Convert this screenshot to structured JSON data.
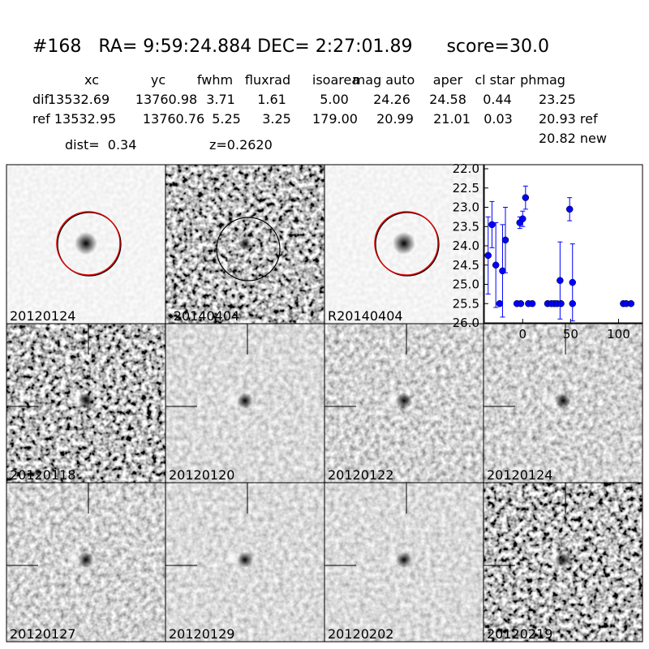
{
  "header": {
    "title": "#168   RA= 9:59:24.884 DEC= 2:27:01.89      score=30.0"
  },
  "table": {
    "columns": [
      "xc",
      "yc",
      "fwhm",
      "fluxrad",
      "isoarea",
      "mag auto",
      "aper",
      "cl star",
      "phmag"
    ],
    "rows": [
      {
        "label": "dif",
        "values": [
          "13532.69",
          "13760.98",
          "3.71",
          "1.61",
          "5.00",
          "24.26",
          "24.58",
          "0.44",
          "23.25"
        ]
      },
      {
        "label": "ref",
        "values": [
          "13532.95",
          "13760.76",
          "5.25",
          "3.25",
          "179.00",
          "20.99",
          "21.01",
          "0.03",
          "20.93 ref"
        ]
      }
    ],
    "extra": "20.82 new"
  },
  "dist": "dist=  0.34",
  "z": "z=0.2620",
  "panels": [
    {
      "label": "20120124"
    },
    {
      "label": "-20140404"
    },
    {
      "label": "R20140404"
    },
    {
      "label": "20120118"
    },
    {
      "label": "20120120"
    },
    {
      "label": "20120122"
    },
    {
      "label": "20120124"
    },
    {
      "label": "20120127"
    },
    {
      "label": "20120129"
    },
    {
      "label": "20120202"
    },
    {
      "label": "20120219"
    }
  ],
  "chart_data": {
    "type": "scatter",
    "invert_y": true,
    "xlim": [
      -40,
      125
    ],
    "ylim": [
      22,
      26
    ],
    "xticks": [
      0,
      50,
      100
    ],
    "yticks": [
      {
        "value": 22,
        "label": "22.0"
      },
      {
        "value": 22.5,
        "label": "22.5"
      },
      {
        "value": 23,
        "label": "23.0"
      },
      {
        "value": 23.5,
        "label": "23.5"
      },
      {
        "value": 24,
        "label": "24.0"
      },
      {
        "value": 24.5,
        "label": "24.5"
      },
      {
        "value": 25,
        "label": "25.0"
      },
      {
        "value": 25.5,
        "label": "25.5"
      },
      {
        "value": 26,
        "label": "26.0"
      }
    ],
    "color": "#0000ff",
    "x": [
      -36,
      -32,
      -28,
      -24,
      -21,
      -18,
      -6,
      -3,
      -2,
      0,
      3,
      6,
      10,
      26,
      30,
      33,
      36,
      39,
      40,
      49,
      52,
      52,
      105,
      108,
      113
    ],
    "values": [
      24.25,
      23.45,
      24.5,
      25.5,
      24.65,
      23.85,
      25.5,
      23.4,
      25.5,
      23.3,
      22.75,
      25.5,
      25.5,
      25.5,
      25.5,
      25.5,
      25.5,
      24.9,
      25.5,
      23.05,
      25.5,
      24.95,
      25.5,
      25.5,
      25.5
    ],
    "errors": [
      1.0,
      0.6,
      1.1,
      0,
      1.2,
      0.85,
      0,
      0.15,
      0,
      0.2,
      0.3,
      0,
      0,
      0,
      0,
      0,
      0,
      1.0,
      0,
      0.3,
      0,
      1.0,
      0,
      0,
      0
    ]
  }
}
